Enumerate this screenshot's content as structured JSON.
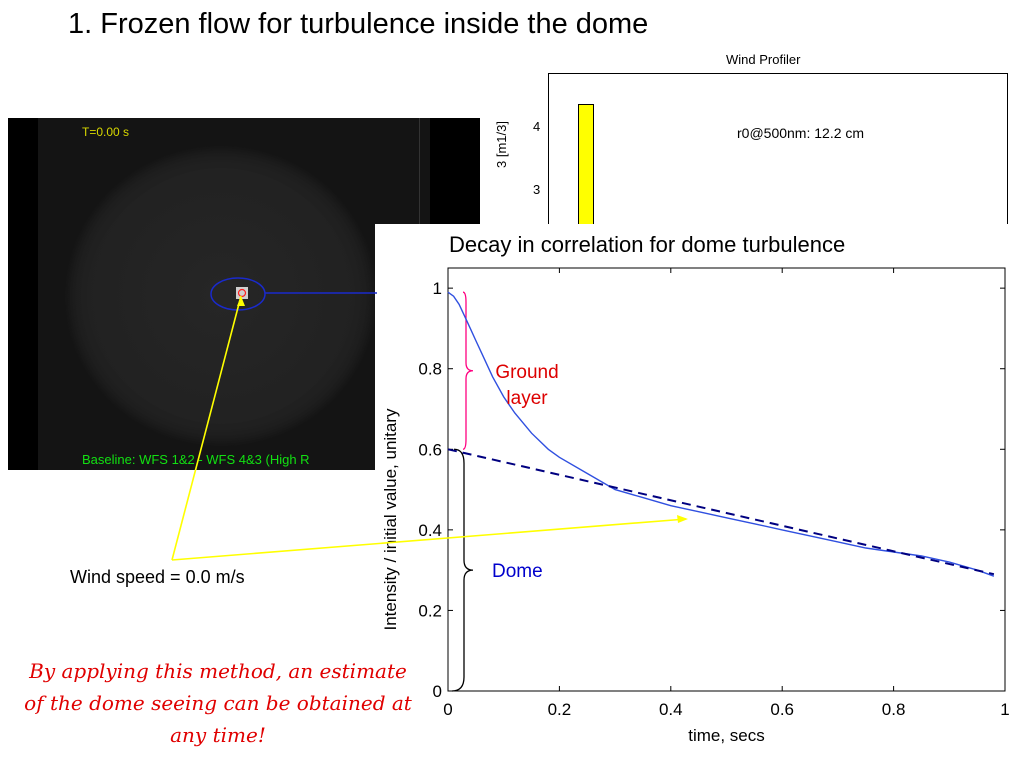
{
  "slide_title": "1. Frozen flow for turbulence inside the dome",
  "profiler": {
    "title": "Wind Profiler",
    "ylabel": "3 [m1/3]",
    "ticks": [
      "4",
      "3"
    ],
    "annotation": "r0@500nm: 12.2 cm",
    "bar_color": "#ffff00"
  },
  "frame": {
    "time_label": "T=0.00 s",
    "baseline_label": "Baseline: WFS 1&2 - WFS 4&3 (High R",
    "time_color": "#d8d800",
    "baseline_color": "#12e012"
  },
  "wind_speed_label": "Wind speed = 0.0 m/s",
  "ground_layer_label": "Ground layer",
  "dome_label": "Dome",
  "note": "By applying this method, an estimate of the dome seeing can be obtained at any time!",
  "colors": {
    "measured_line": "#3050e0",
    "fit_line": "#000080",
    "ground_brace": "#ff0080",
    "arrow": "#ffff00",
    "note_text": "#e00000"
  },
  "chart_data": {
    "type": "line",
    "title": "Decay in correlation for dome turbulence",
    "xlabel": "time, secs",
    "ylabel": "Intensity / initial value, unitary",
    "xlim": [
      0,
      1
    ],
    "ylim": [
      0,
      1.05
    ],
    "xticks": [
      0,
      0.2,
      0.4,
      0.6,
      0.8,
      1
    ],
    "yticks": [
      0,
      0.2,
      0.4,
      0.6,
      0.8,
      1
    ],
    "xtick_labels": [
      "0",
      "0.2",
      "0.4",
      "0.6",
      "0.8",
      "1"
    ],
    "ytick_labels": [
      "0",
      "0.2",
      "0.4",
      "0.6",
      "0.8",
      "1"
    ],
    "grid": false,
    "series": [
      {
        "style": "solid",
        "x": [
          0,
          0.01,
          0.02,
          0.03,
          0.04,
          0.05,
          0.06,
          0.08,
          0.1,
          0.12,
          0.15,
          0.18,
          0.2,
          0.25,
          0.3,
          0.35,
          0.4,
          0.45,
          0.5,
          0.55,
          0.6,
          0.65,
          0.7,
          0.75,
          0.8,
          0.85,
          0.9,
          0.95,
          0.98
        ],
        "y": [
          0.99,
          0.98,
          0.96,
          0.93,
          0.9,
          0.87,
          0.84,
          0.78,
          0.73,
          0.69,
          0.64,
          0.6,
          0.58,
          0.54,
          0.5,
          0.48,
          0.46,
          0.445,
          0.43,
          0.415,
          0.4,
          0.385,
          0.37,
          0.355,
          0.345,
          0.335,
          0.32,
          0.3,
          0.285
        ]
      },
      {
        "style": "dashed",
        "x": [
          0,
          0.98
        ],
        "y": [
          0.6,
          0.29
        ]
      }
    ]
  }
}
